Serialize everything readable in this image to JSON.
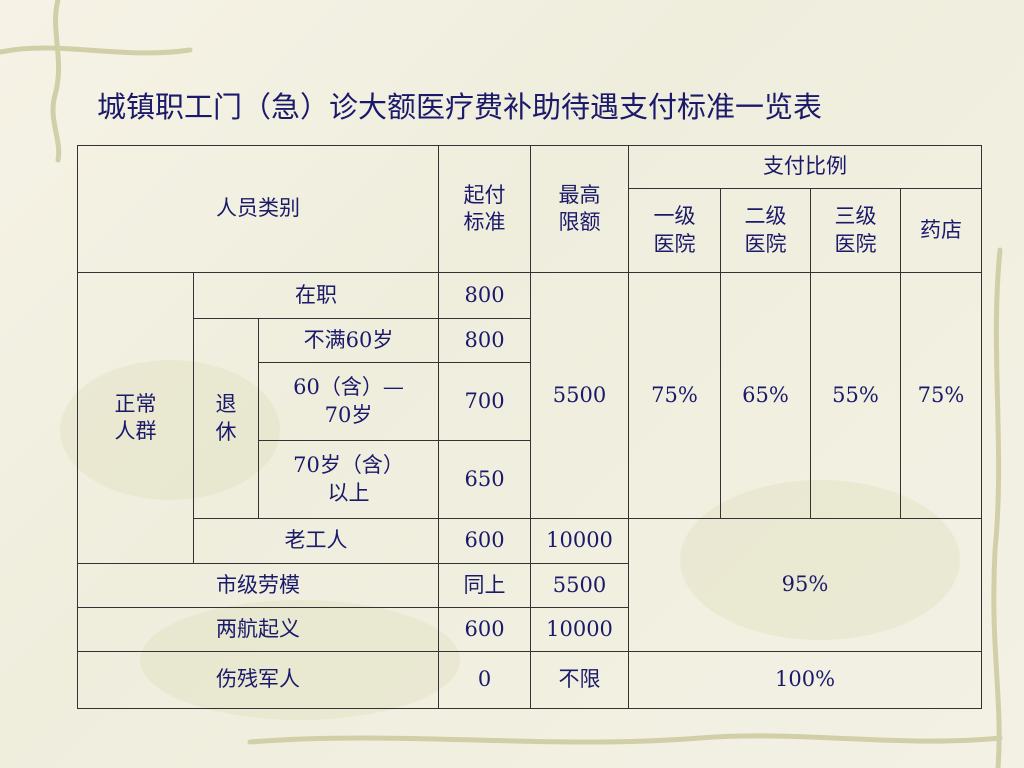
{
  "title": "城镇职工门（急）诊大额医疗费补助待遇支付标准一览表",
  "table": {
    "rows": [
      [
        "人员类别",
        "起付\n标准",
        "最高\n限额",
        "支付比例"
      ],
      [
        "一级\n医院",
        "二级\n医院",
        "三级\n医院",
        "药店"
      ],
      [
        "正常\n人群",
        "在职",
        800,
        5500,
        "75%",
        "65%",
        "55%",
        "75%"
      ],
      [
        "退\n休",
        "不满60岁",
        800
      ],
      [
        "60（含）—\n70岁",
        700
      ],
      [
        "70岁（含）\n以上",
        650
      ],
      [
        "老工人",
        600,
        10000,
        "95%"
      ],
      [
        "市级劳模",
        "同上",
        5500
      ],
      [
        "两航起义",
        600,
        10000
      ],
      [
        "伤残军人",
        0,
        "不限",
        "100%"
      ]
    ]
  }
}
